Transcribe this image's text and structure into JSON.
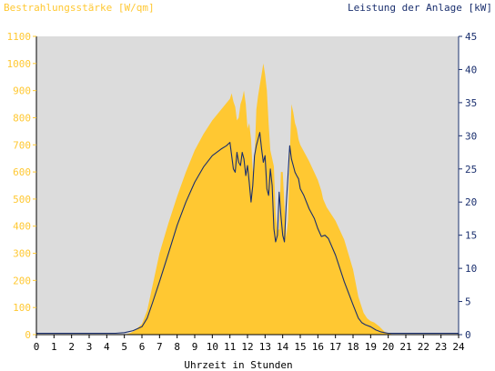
{
  "chart_data": {
    "type": "area",
    "title_left": "Bestrahlungsstärke [W/qm]",
    "title_right": "Leistung der Anlage [kW]",
    "xlabel": "Uhrzeit in Stunden",
    "x_ticks": [
      "0",
      "1",
      "2",
      "3",
      "4",
      "5",
      "6",
      "7",
      "8",
      "9",
      "10",
      "11",
      "12",
      "13",
      "14",
      "15",
      "16",
      "17",
      "18",
      "19",
      "20",
      "21",
      "22",
      "23",
      "24"
    ],
    "xlim": [
      0,
      24
    ],
    "y_left": {
      "ylim": [
        0,
        1100
      ],
      "ticks": [
        "0",
        "100",
        "200",
        "300",
        "400",
        "500",
        "600",
        "700",
        "800",
        "900",
        "1000",
        "1100"
      ]
    },
    "y_right": {
      "ylim": [
        0,
        45
      ],
      "ticks": [
        "0",
        "5",
        "10",
        "15",
        "20",
        "25",
        "30",
        "35",
        "40",
        "45"
      ]
    },
    "grid": false,
    "colors": {
      "plot_bg": "#dcdcdc",
      "irradiance": "#ffc832",
      "power": "#1a2f6e",
      "left_axis_text": "#ffc832",
      "right_axis_text": "#1a2f6e",
      "x_axis_text": "#000000"
    },
    "series": [
      {
        "axis": "left",
        "kind": "area",
        "x": [
          0,
          5,
          5.3,
          5.6,
          6.0,
          6.3,
          6.6,
          7.0,
          7.5,
          8.0,
          8.5,
          9.0,
          9.5,
          10.0,
          10.5,
          11.0,
          11.1,
          11.2,
          11.3,
          11.4,
          11.5,
          11.6,
          11.7,
          11.8,
          11.9,
          12.0,
          12.1,
          12.2,
          12.3,
          12.4,
          12.5,
          12.6,
          12.7,
          12.8,
          12.9,
          13.0,
          13.1,
          13.2,
          13.3,
          13.4,
          13.5,
          13.6,
          13.7,
          13.8,
          13.9,
          14.0,
          14.1,
          14.2,
          14.3,
          14.4,
          14.5,
          14.6,
          14.7,
          14.8,
          14.9,
          15.0,
          15.5,
          16.0,
          16.2,
          16.3,
          16.5,
          17.0,
          17.5,
          18.0,
          18.3,
          18.6,
          18.8,
          19.0,
          19.2,
          19.5,
          19.8,
          20.0,
          20.3,
          24
        ],
        "y": [
          0,
          0,
          5,
          15,
          40,
          90,
          180,
          300,
          410,
          510,
          600,
          680,
          740,
          790,
          830,
          870,
          890,
          860,
          840,
          790,
          800,
          850,
          870,
          900,
          850,
          760,
          780,
          720,
          600,
          640,
          830,
          880,
          920,
          960,
          1000,
          960,
          900,
          780,
          680,
          650,
          620,
          450,
          380,
          390,
          600,
          600,
          480,
          360,
          420,
          650,
          850,
          820,
          780,
          760,
          720,
          700,
          640,
          570,
          530,
          500,
          470,
          420,
          350,
          240,
          140,
          80,
          60,
          50,
          45,
          30,
          10,
          5,
          0,
          0
        ]
      },
      {
        "axis": "right",
        "kind": "line",
        "x": [
          0,
          4.5,
          5.0,
          5.5,
          6.0,
          6.3,
          6.6,
          7.0,
          7.5,
          8.0,
          8.5,
          9.0,
          9.5,
          10.0,
          10.5,
          10.8,
          11.0,
          11.1,
          11.2,
          11.3,
          11.4,
          11.5,
          11.6,
          11.7,
          11.8,
          11.9,
          12.0,
          12.1,
          12.2,
          12.3,
          12.4,
          12.5,
          12.6,
          12.7,
          12.8,
          12.9,
          13.0,
          13.1,
          13.2,
          13.3,
          13.4,
          13.5,
          13.6,
          13.7,
          13.8,
          13.9,
          14.0,
          14.1,
          14.2,
          14.3,
          14.4,
          14.5,
          14.6,
          14.7,
          14.8,
          14.9,
          15.0,
          15.2,
          15.5,
          15.8,
          16.0,
          16.2,
          16.4,
          16.6,
          17.0,
          17.5,
          18.0,
          18.3,
          18.5,
          18.7,
          19.0,
          19.3,
          19.6,
          19.8,
          20.0,
          20.3,
          24
        ],
        "y": [
          0.2,
          0.2,
          0.3,
          0.6,
          1.2,
          2.5,
          4.8,
          8.0,
          12.2,
          16.5,
          20.0,
          23.0,
          25.3,
          27.0,
          28.0,
          28.5,
          29.0,
          27.0,
          25.0,
          24.5,
          27.5,
          26.0,
          25.5,
          27.5,
          26.5,
          24.0,
          25.5,
          23.0,
          20.0,
          22.5,
          27.0,
          28.5,
          29.5,
          30.5,
          28.0,
          26.0,
          27.0,
          22.0,
          21.0,
          25.0,
          22.5,
          16.0,
          14.0,
          15.0,
          21.5,
          18.0,
          15.0,
          14.0,
          19.5,
          24.0,
          28.5,
          26.5,
          25.5,
          24.5,
          24.0,
          23.5,
          22.0,
          21.0,
          19.0,
          17.5,
          16.0,
          14.8,
          15.0,
          14.5,
          12.0,
          8.0,
          4.5,
          2.5,
          1.8,
          1.5,
          1.2,
          0.7,
          0.4,
          0.3,
          0.2,
          0.2,
          0.2
        ]
      }
    ]
  }
}
